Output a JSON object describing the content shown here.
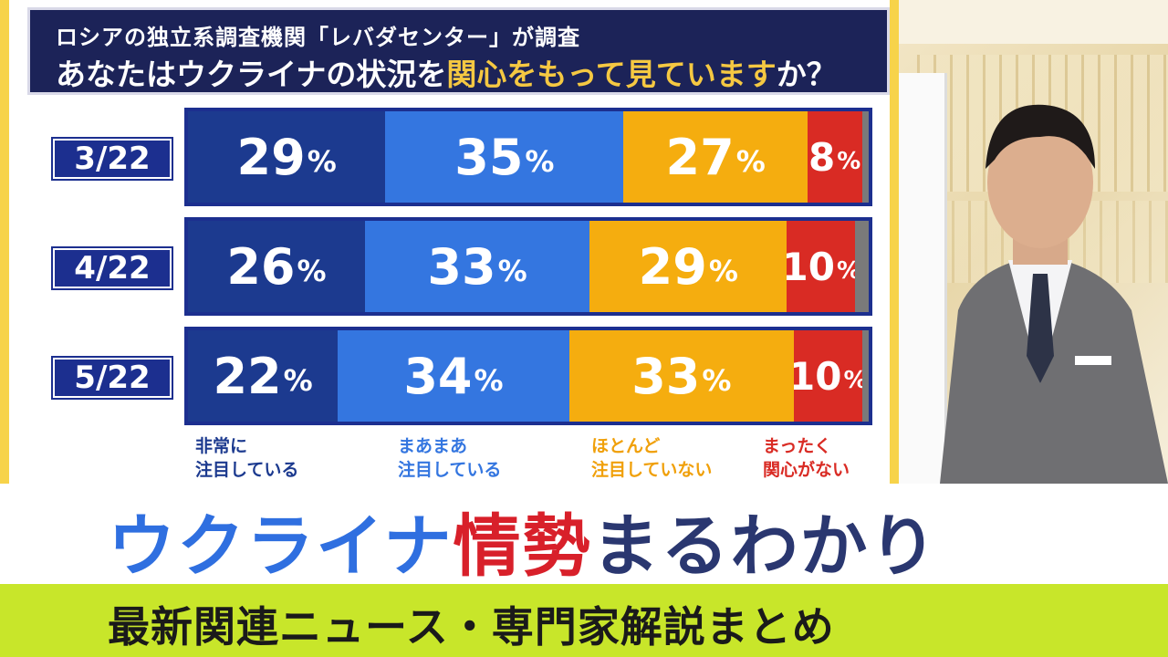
{
  "header": {
    "subtitle": "ロシアの独立系調査機関「レバダセンター」が調査",
    "title_pre": "あなたはウクライナの状況を",
    "title_highlight": "関心をもって見ています",
    "title_post": "か？"
  },
  "colors": {
    "very": "#1c3a8f",
    "somewhat": "#3476e0",
    "hardly": "#f5ad0f",
    "none": "#d92b24",
    "other": "#7a7a7a",
    "accent": "#f5c842"
  },
  "chart_data": {
    "type": "bar",
    "orientation": "horizontal-stacked-100",
    "categories": [
      "3/22",
      "4/22",
      "5/22"
    ],
    "series": [
      {
        "name": "非常に注目している",
        "values": [
          29,
          26,
          22
        ]
      },
      {
        "name": "まあまあ注目している",
        "values": [
          35,
          33,
          34
        ]
      },
      {
        "name": "ほとんど注目していない",
        "values": [
          27,
          29,
          33
        ]
      },
      {
        "name": "まったく関心がない",
        "values": [
          8,
          10,
          10
        ]
      }
    ],
    "unit": "%"
  },
  "legend": [
    {
      "line1": "非常に",
      "line2": "注目している"
    },
    {
      "line1": "まあまあ",
      "line2": "注目している"
    },
    {
      "line1": "ほとんど",
      "line2": "注目していない"
    },
    {
      "line1": "まったく",
      "line2": "関心がない"
    }
  ],
  "caption": {
    "part1": "ウクライナ",
    "part2": "情勢",
    "part3": "まるわかり",
    "sub": "最新関連ニュース・専門家解説まとめ"
  }
}
